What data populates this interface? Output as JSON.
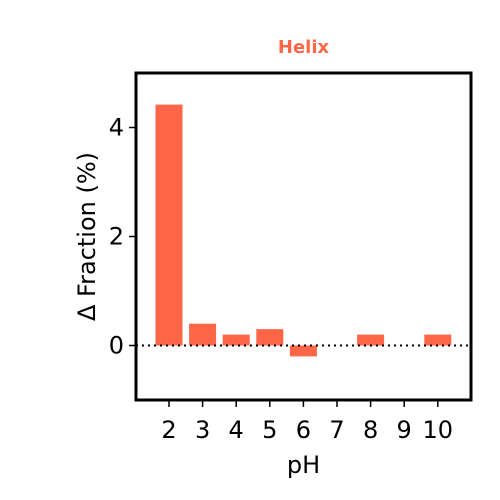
{
  "chart_data": {
    "type": "bar",
    "title": "Helix",
    "xlabel": "pH",
    "ylabel": "Δ Fraction (%)",
    "categories": [
      "2",
      "3",
      "4",
      "5",
      "6",
      "7",
      "8",
      "9",
      "10"
    ],
    "values": [
      4.42,
      0.4,
      0.2,
      0.3,
      -0.2,
      0.0,
      0.2,
      0.0,
      0.2
    ],
    "ylim": [
      -1.0,
      5.0
    ],
    "yticks": [
      "0",
      "2",
      "4"
    ],
    "grid": false,
    "reference_line": {
      "y": 0,
      "style": "dotted"
    },
    "colors": {
      "bar": "#ff6647",
      "title": "#ff6647",
      "axis": "#000000"
    }
  }
}
